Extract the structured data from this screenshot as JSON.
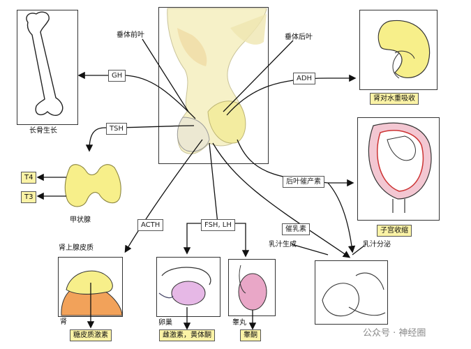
{
  "labels": {
    "anterior": "垂体前叶",
    "posterior": "垂体后叶",
    "bone": "长骨生长",
    "thyroid": "甲状腺",
    "adrenal_cortex": "肾上腺皮质",
    "kidney_small": "肾",
    "ovary": "卵巢",
    "testis": "睾丸",
    "milk_production": "乳汁生成",
    "milk_ejection": "乳汁分泌"
  },
  "hormones": {
    "gh": "GH",
    "tsh": "TSH",
    "acth": "ACTH",
    "fsh_lh": "FSH, LH",
    "adh": "ADH",
    "oxytocin": "后叶催产素",
    "prolactin": "催乳素"
  },
  "effects": {
    "t4": "T4",
    "t3": "T3",
    "kidney": "肾对水重吸收",
    "uterus": "子宫收缩",
    "cortisol": "糖皮质激素",
    "estrogen": "雌激素，黄体酮",
    "testosterone": "睾酮"
  },
  "watermark": "公众号 · 神经圈",
  "colors": {
    "label_bg": "#fbf3a6",
    "gland": "#f3eeb0",
    "thyroid": "#f7ef8a",
    "pink": "#e9a7c7",
    "orange": "#f2a25a"
  }
}
